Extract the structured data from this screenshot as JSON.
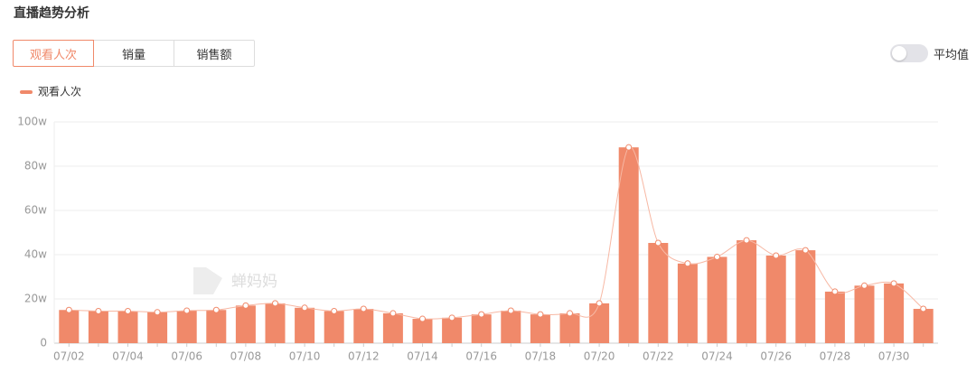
{
  "header": {
    "title": "直播趋势分析"
  },
  "tabs": [
    "观看人次",
    "销量",
    "销售额"
  ],
  "toggle_label": "平均值",
  "watermark": "蝉妈妈",
  "chart_data": {
    "type": "bar",
    "categories": [
      "07/02",
      null,
      "07/04",
      null,
      "07/06",
      null,
      "07/08",
      null,
      "07/10",
      null,
      "07/12",
      null,
      "07/14",
      null,
      "07/16",
      null,
      "07/18",
      null,
      "07/20",
      null,
      "07/22",
      null,
      "07/24",
      null,
      "07/26",
      null,
      "07/28",
      null,
      "07/30",
      null
    ],
    "series": [
      {
        "name": "观看人次",
        "color": "#f0896a",
        "values": [
          15,
          14.5,
          14.5,
          14,
          14.7,
          15,
          17,
          18,
          16,
          14.5,
          15.5,
          13.5,
          11,
          11.5,
          13,
          14.7,
          13,
          13.5,
          18,
          88.5,
          45.3,
          36,
          39,
          46.5,
          39.6,
          42,
          23.3,
          26,
          27,
          15.5
        ]
      }
    ],
    "ylim": [
      0,
      100
    ],
    "yticks": [
      0,
      {
        "value": 20,
        "label": "20w"
      },
      {
        "value": 40,
        "label": "40w"
      },
      {
        "value": 60,
        "label": "60w"
      },
      {
        "value": 80,
        "label": "80w"
      },
      {
        "value": 100,
        "label": "100w"
      }
    ],
    "grid": true
  }
}
